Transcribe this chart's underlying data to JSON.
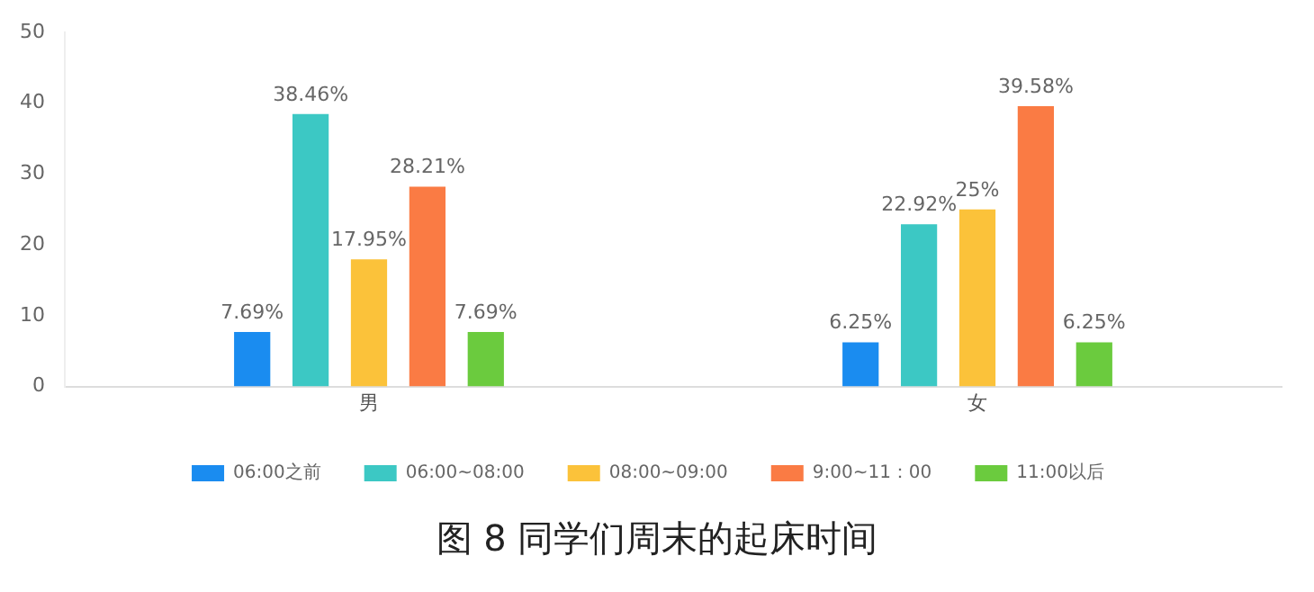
{
  "chart_data": {
    "type": "bar",
    "title": "图 8 同学们周末的起床时间",
    "categories": [
      "男",
      "女"
    ],
    "series": [
      {
        "name": "06:00之前",
        "color": "#1a8cf0",
        "values": [
          7.69,
          6.25
        ],
        "value_labels": [
          "7.69%",
          "6.25%"
        ]
      },
      {
        "name": "06:00~08:00",
        "color": "#3cc8c4",
        "values": [
          38.46,
          22.92
        ],
        "value_labels": [
          "38.46%",
          "22.92%"
        ]
      },
      {
        "name": "08:00~09:00",
        "color": "#fbc23a",
        "values": [
          17.95,
          25
        ],
        "value_labels": [
          "17.95%",
          "25%"
        ]
      },
      {
        "name": "9:00~11：00",
        "color": "#fa7b44",
        "values": [
          28.21,
          39.58
        ],
        "value_labels": [
          "28.21%",
          "39.58%"
        ]
      },
      {
        "name": "11:00以后",
        "color": "#6bcb3e",
        "values": [
          7.69,
          6.25
        ],
        "value_labels": [
          "7.69%",
          "6.25%"
        ]
      }
    ],
    "ylim": [
      0,
      50
    ],
    "yticks": [
      0,
      10,
      20,
      30,
      40,
      50
    ],
    "grid": false,
    "legend": "bottom"
  }
}
